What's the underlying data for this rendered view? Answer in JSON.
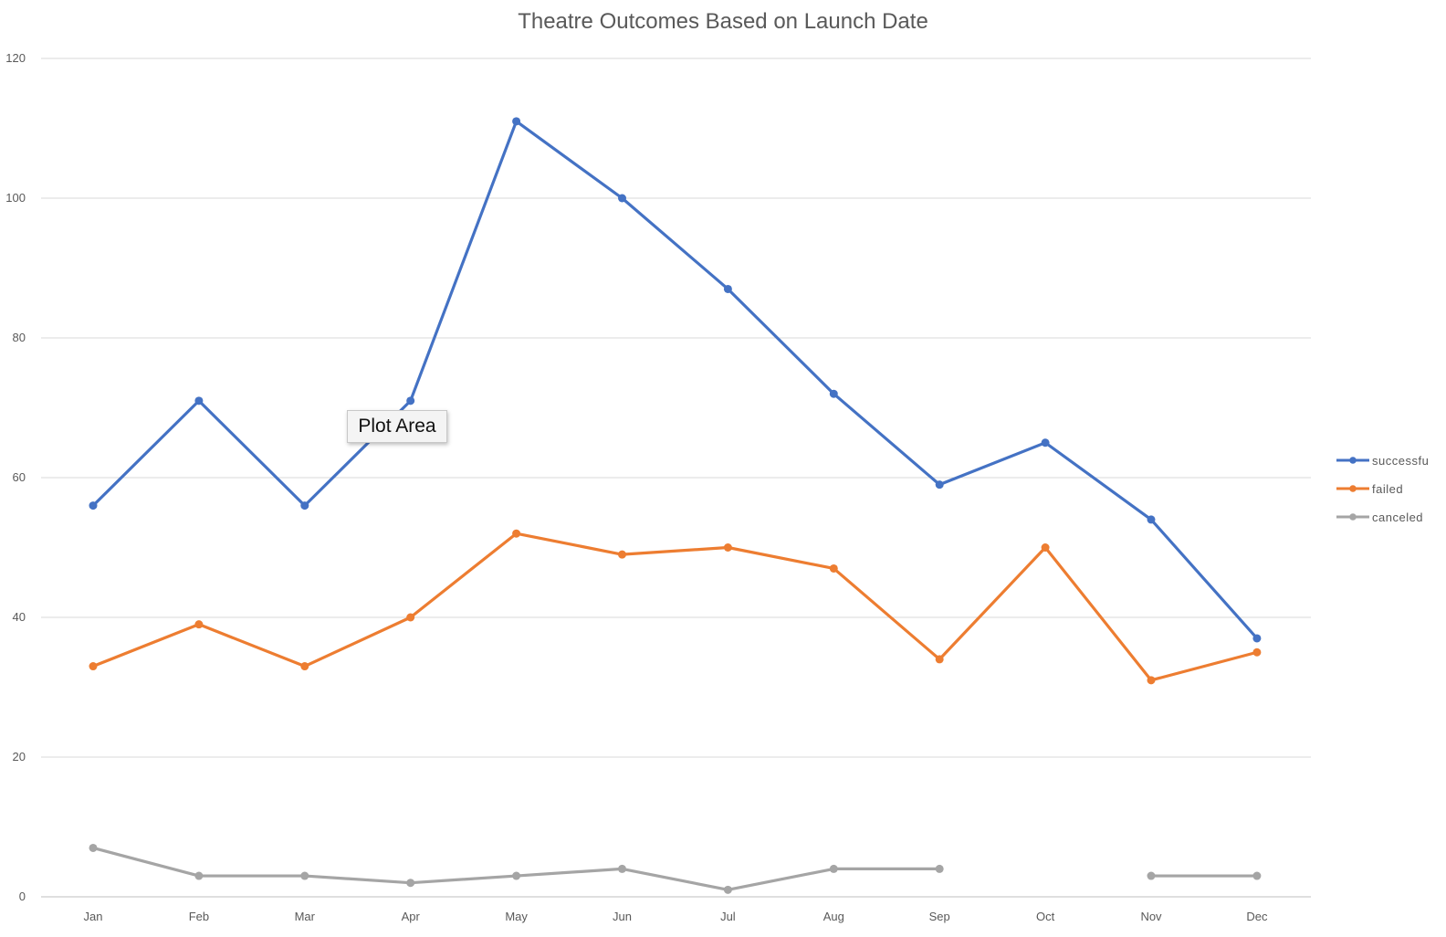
{
  "chart_data": {
    "type": "line",
    "title": "Theatre Outcomes Based on Launch Date",
    "xlabel": "",
    "ylabel": "",
    "categories": [
      "Jan",
      "Feb",
      "Mar",
      "Apr",
      "May",
      "Jun",
      "Jul",
      "Aug",
      "Sep",
      "Oct",
      "Nov",
      "Dec"
    ],
    "ylim": [
      0,
      120
    ],
    "yticks": [
      "0",
      "20",
      "40",
      "60",
      "80",
      "100",
      "120"
    ],
    "grid": true,
    "legend_position": "right",
    "series": [
      {
        "name": "successfu",
        "color": "#4472C4",
        "values": [
          56,
          71,
          56,
          71,
          111,
          100,
          87,
          72,
          59,
          65,
          54,
          37
        ]
      },
      {
        "name": "failed",
        "color": "#ED7D31",
        "values": [
          33,
          39,
          33,
          40,
          52,
          49,
          50,
          47,
          34,
          50,
          31,
          35
        ]
      },
      {
        "name": "canceled",
        "color": "#A5A5A5",
        "values": [
          7,
          3,
          3,
          2,
          3,
          4,
          1,
          4,
          4,
          null,
          3,
          3
        ]
      }
    ]
  },
  "tooltip": {
    "text": "Plot Area"
  }
}
